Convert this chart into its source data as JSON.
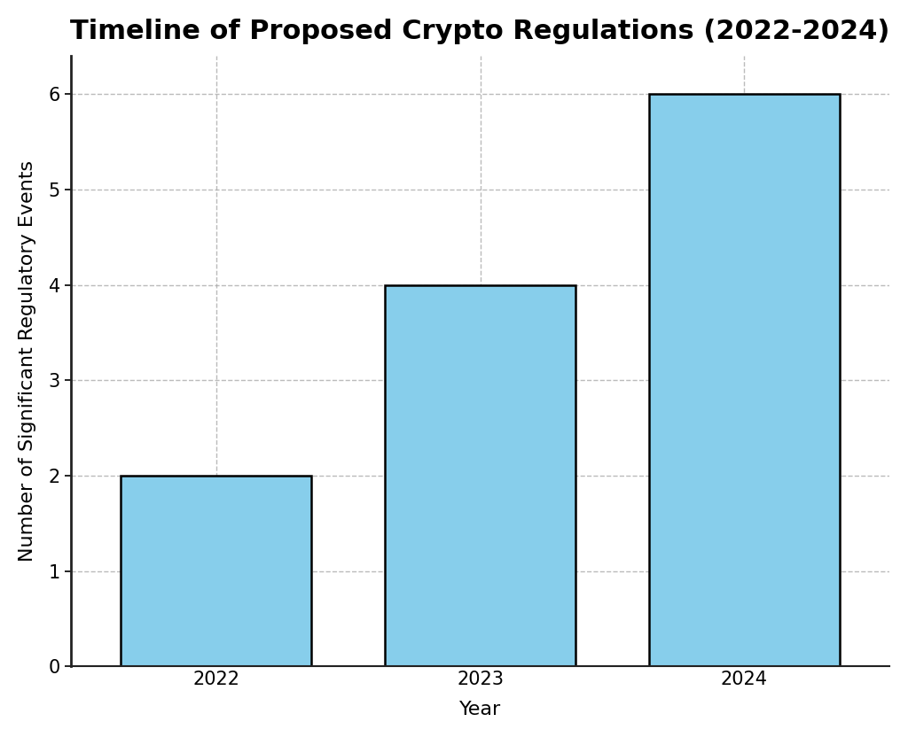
{
  "title": "Timeline of Proposed Crypto Regulations (2022-2024)",
  "xlabel": "Year",
  "ylabel": "Number of Significant Regulatory Events",
  "categories": [
    "2022",
    "2023",
    "2024"
  ],
  "values": [
    2,
    4,
    6
  ],
  "bar_color": "#87CEEB",
  "bar_edgecolor": "#000000",
  "bar_edgewidth": 1.8,
  "ylim": [
    0,
    6.4
  ],
  "yticks": [
    0,
    1,
    2,
    3,
    4,
    5,
    6
  ],
  "grid_color": "#aaaaaa",
  "grid_linestyle": "--",
  "grid_alpha": 0.8,
  "title_fontsize": 22,
  "label_fontsize": 16,
  "tick_fontsize": 15,
  "background_color": "#ffffff",
  "bar_width": 0.72
}
